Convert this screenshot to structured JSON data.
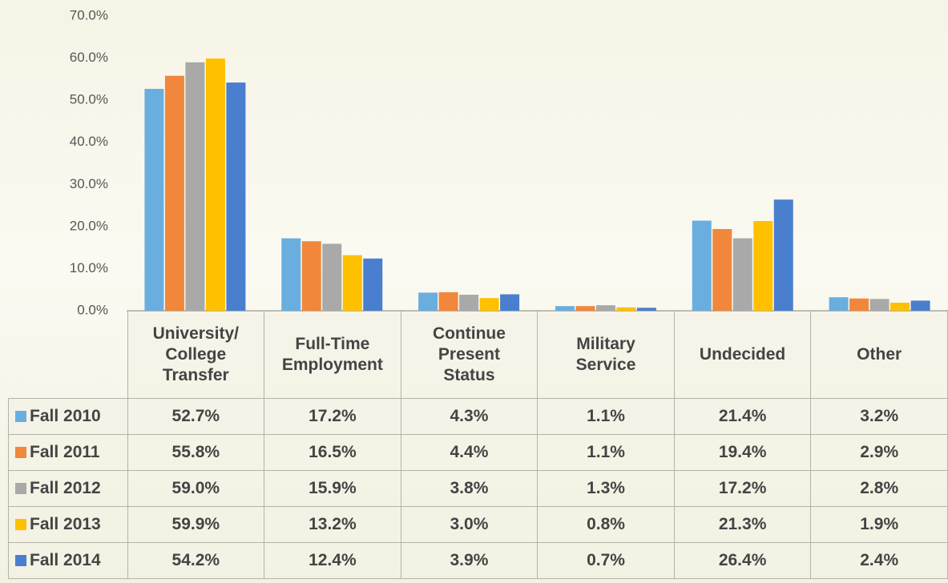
{
  "chart_data": {
    "type": "bar",
    "categories": [
      "University/ College Transfer",
      "Full-Time Employment",
      "Continue Present Status",
      "Military Service",
      "Undecided",
      "Other"
    ],
    "series": [
      {
        "name": "Fall 2010",
        "color": "#6aaee0",
        "values": [
          52.7,
          17.2,
          4.3,
          1.1,
          21.4,
          3.2
        ],
        "value_labels": [
          "52.7%",
          "17.2%",
          "4.3%",
          "1.1%",
          "21.4%",
          "3.2%"
        ]
      },
      {
        "name": "Fall 2011",
        "color": "#f0873a",
        "values": [
          55.8,
          16.5,
          4.4,
          1.1,
          19.4,
          2.9
        ],
        "value_labels": [
          "55.8%",
          "16.5%",
          "4.4%",
          "1.1%",
          "19.4%",
          "2.9%"
        ]
      },
      {
        "name": "Fall 2012",
        "color": "#a9a9a9",
        "values": [
          59.0,
          15.9,
          3.8,
          1.3,
          17.2,
          2.8
        ],
        "value_labels": [
          "59.0%",
          "15.9%",
          "3.8%",
          "1.3%",
          "17.2%",
          "2.8%"
        ]
      },
      {
        "name": "Fall 2013",
        "color": "#ffc000",
        "values": [
          59.9,
          13.2,
          3.0,
          0.8,
          21.3,
          1.9
        ],
        "value_labels": [
          "59.9%",
          "13.2%",
          "3.0%",
          "0.8%",
          "21.3%",
          "1.9%"
        ]
      },
      {
        "name": "Fall 2014",
        "color": "#4a7fcf",
        "values": [
          54.2,
          12.4,
          3.9,
          0.7,
          26.4,
          2.4
        ],
        "value_labels": [
          "54.2%",
          "12.4%",
          "3.9%",
          "0.7%",
          "26.4%",
          "2.4%"
        ]
      }
    ],
    "ylim": [
      0,
      70
    ],
    "yticks": [
      {
        "value": 0,
        "label": "0.0%"
      },
      {
        "value": 10,
        "label": "10.0%"
      },
      {
        "value": 20,
        "label": "20.0%"
      },
      {
        "value": 30,
        "label": "30.0%"
      },
      {
        "value": 40,
        "label": "40.0%"
      },
      {
        "value": 50,
        "label": "50.0%"
      },
      {
        "value": 60,
        "label": "60.0%"
      },
      {
        "value": 70,
        "label": "70.0%"
      }
    ],
    "grid": false
  }
}
